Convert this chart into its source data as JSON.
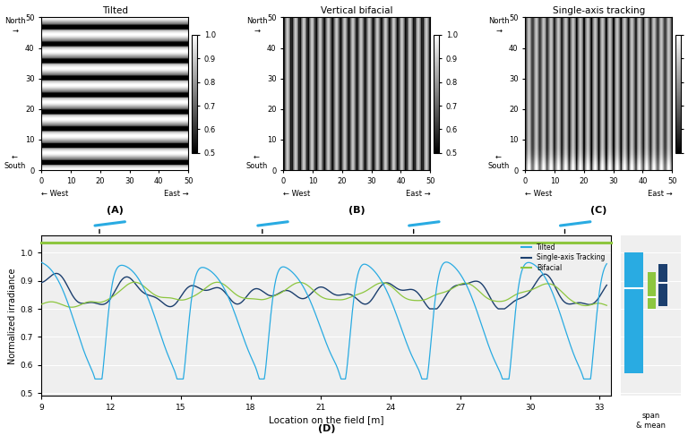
{
  "title_A": "Tilted",
  "title_B": "Vertical bifacial",
  "title_C": "Single-axis tracking",
  "colorbar_ticks": [
    0.5,
    0.6,
    0.7,
    0.8,
    0.9,
    1.0
  ],
  "axis_ticks": [
    0,
    10,
    20,
    30,
    40,
    50
  ],
  "line_colors": {
    "tilted": "#29ABE2",
    "tracking": "#1C3F6E",
    "bifacial": "#8DC63F"
  },
  "box_colors": {
    "tilted": "#29ABE2",
    "bifacial": "#8DC63F",
    "tracking": "#1C3F6E"
  },
  "plot_xlim": [
    9,
    33.5
  ],
  "plot_ylim": [
    0.49,
    1.06
  ],
  "plot_yticks": [
    0.5,
    0.6,
    0.7,
    0.8,
    0.9,
    1.0
  ],
  "plot_xticks": [
    9,
    12,
    15,
    18,
    21,
    24,
    27,
    30,
    33
  ],
  "xlabel_D": "Location on the field [m]",
  "ylabel_D": "Normalized irradiance",
  "panel_label_A": "(A)",
  "panel_label_B": "(B)",
  "panel_label_C": "(C)",
  "panel_label_D": "(D)",
  "background_color": "#efefef"
}
